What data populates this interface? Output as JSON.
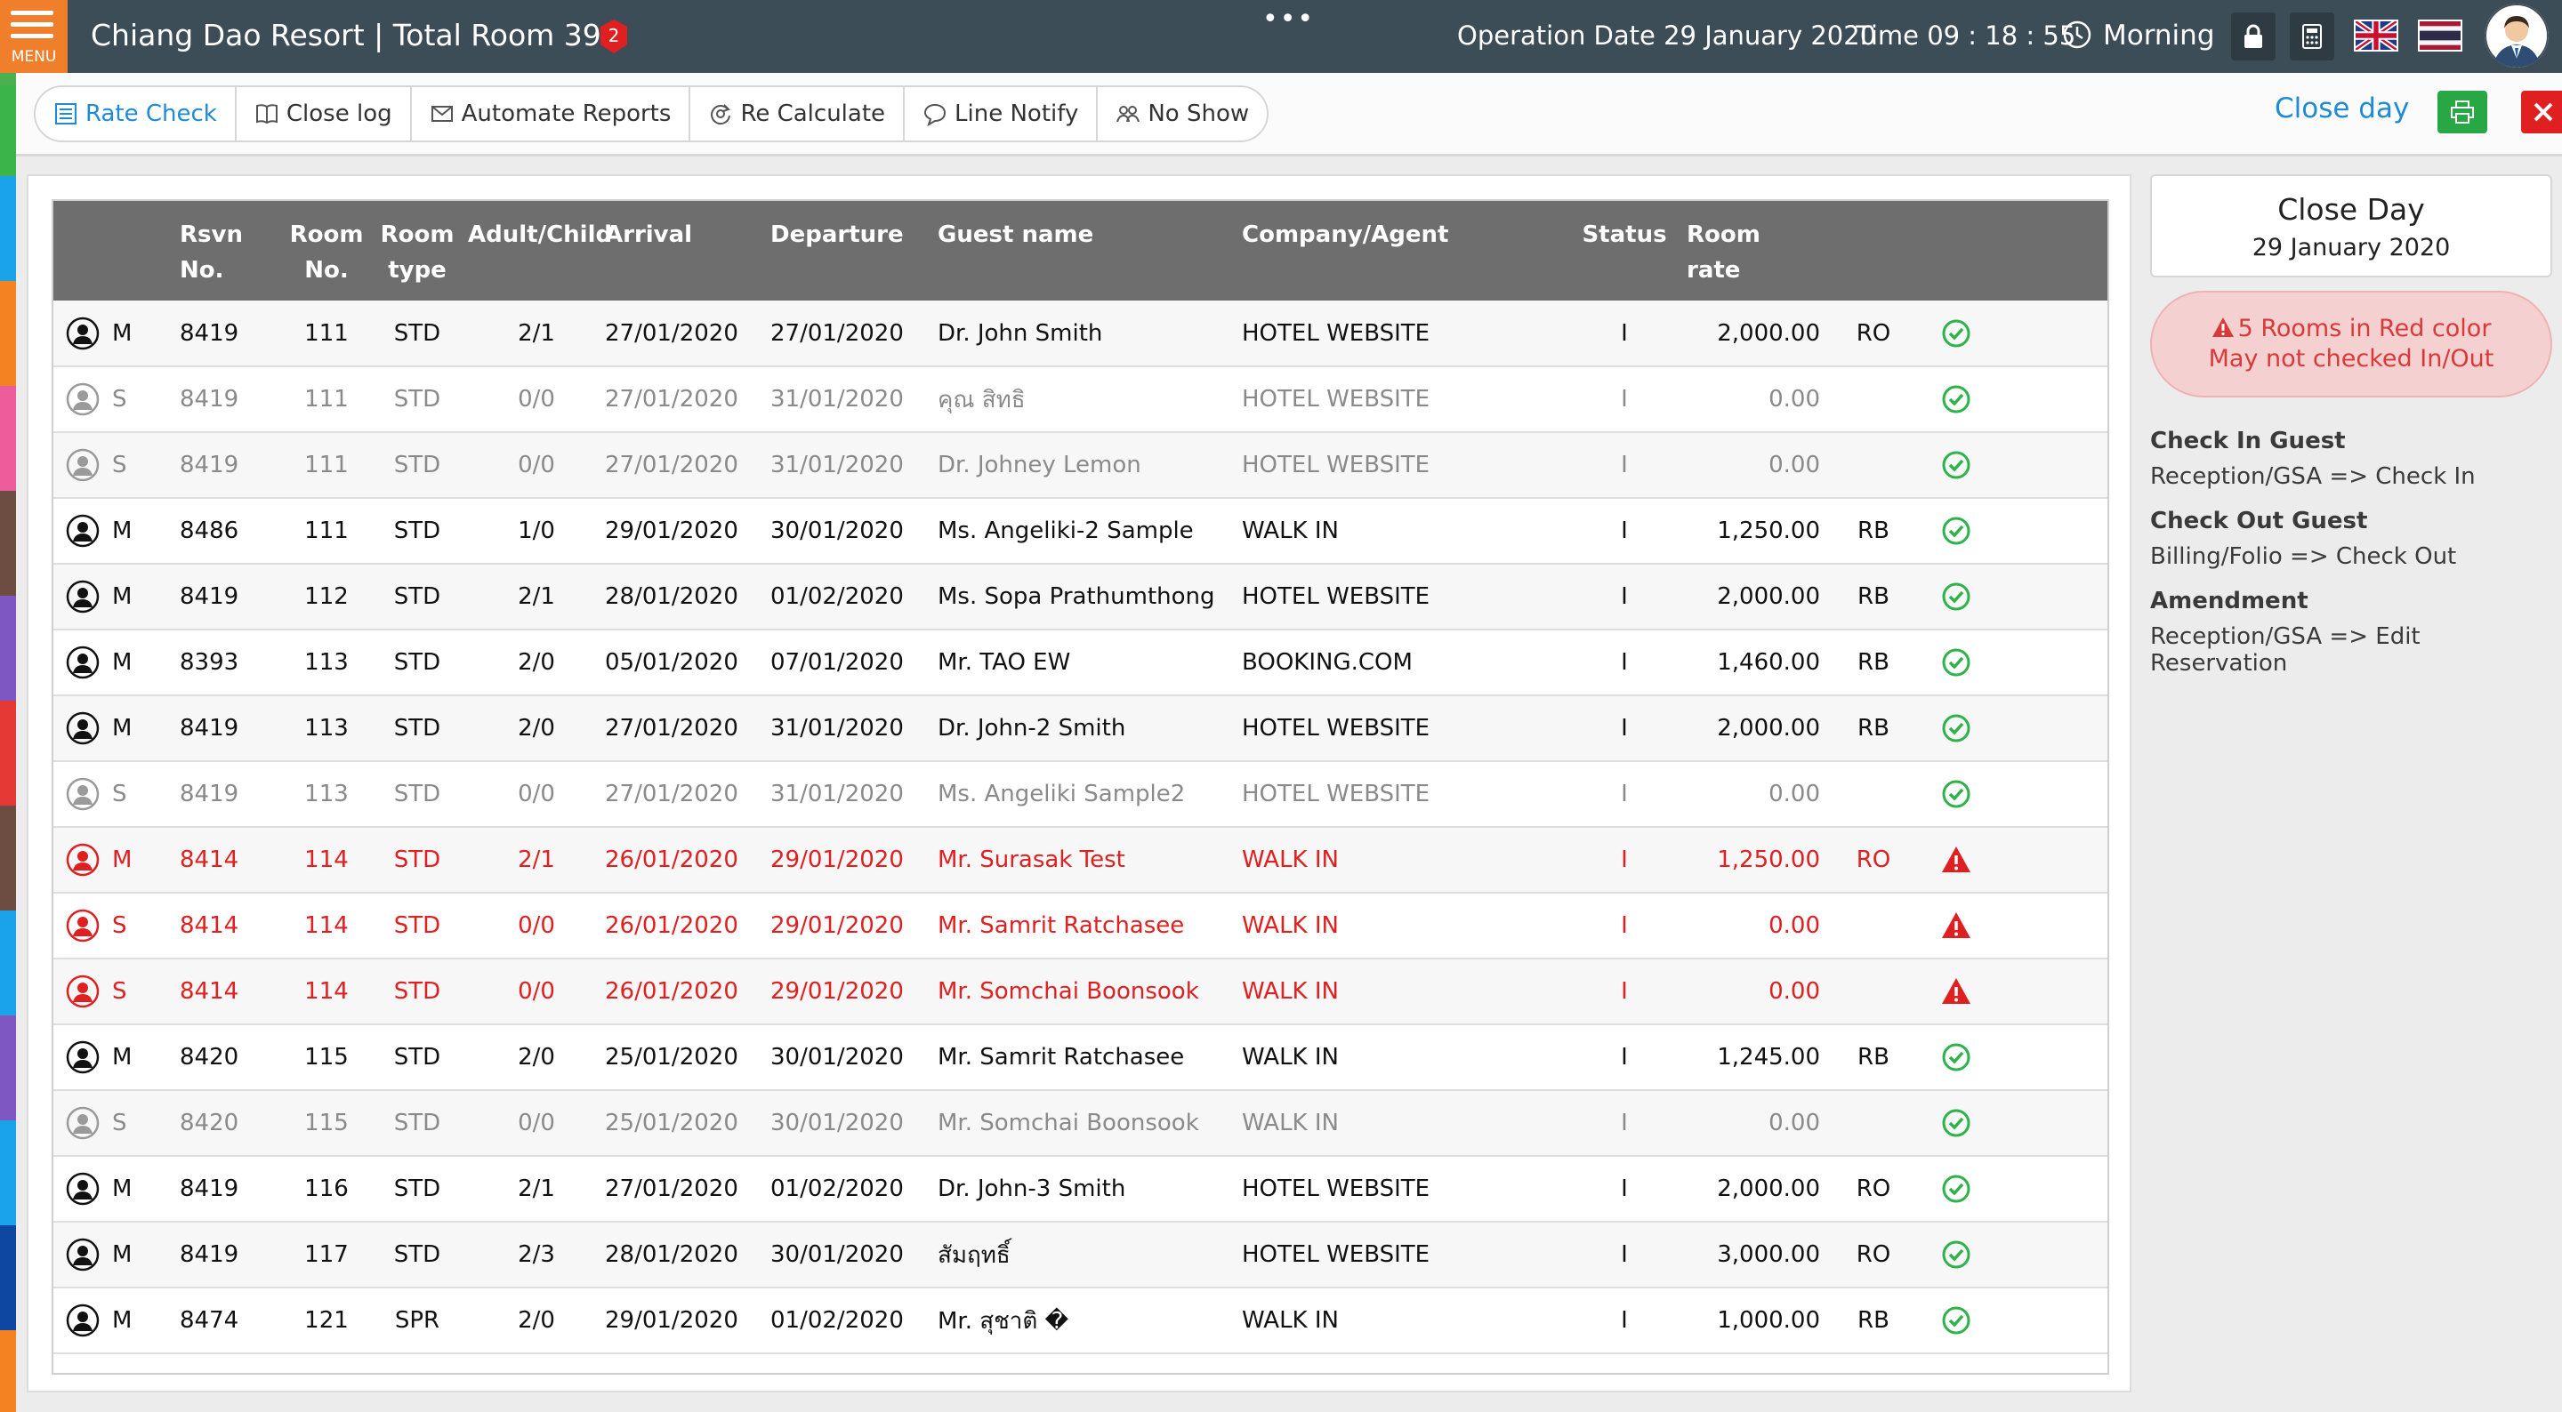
{
  "header": {
    "menu_label": "MENU",
    "title": "Chiang Dao Resort | Total Room 39",
    "notification_count": "2",
    "more_dots": "•••",
    "operation_date": "Operation Date 29 January 2020",
    "time": "Time 09 : 18 : 55",
    "shift": "Morning"
  },
  "toolbar": {
    "items": [
      {
        "label": "Rate Check",
        "icon": "list-icon"
      },
      {
        "label": "Close log",
        "icon": "book-icon"
      },
      {
        "label": "Automate Reports",
        "icon": "envelope-icon"
      },
      {
        "label": "Re Calculate",
        "icon": "refresh-icon"
      },
      {
        "label": "Line Notify",
        "icon": "chat-icon"
      },
      {
        "label": "No Show",
        "icon": "people-icon"
      }
    ],
    "close_day_link": "Close day"
  },
  "table": {
    "headers": {
      "rsvn1": "Rsvn",
      "rsvn2": "No.",
      "room1": "Room",
      "room2": "No.",
      "type1": "Room",
      "type2": "type",
      "pax": "Adult/Child",
      "arrival": "Arrival",
      "departure": "Departure",
      "guest": "Guest name",
      "company": "Company/Agent",
      "status": "Status",
      "rate": "Room rate"
    },
    "rows": [
      {
        "kind": "M",
        "rsvn": "8419",
        "room": "111",
        "type": "STD",
        "pax": "2/1",
        "arrival": "27/01/2020",
        "departure": "27/01/2020",
        "guest": "Dr. John Smith",
        "company": "HOTEL WEBSITE",
        "status": "I",
        "rate": "2,000.00",
        "plan": "RO",
        "state": "normal"
      },
      {
        "kind": "S",
        "rsvn": "8419",
        "room": "111",
        "type": "STD",
        "pax": "0/0",
        "arrival": "27/01/2020",
        "departure": "31/01/2020",
        "guest": "คุณ สิทธิ",
        "company": "HOTEL WEBSITE",
        "status": "I",
        "rate": "0.00",
        "plan": "",
        "state": "sharer"
      },
      {
        "kind": "S",
        "rsvn": "8419",
        "room": "111",
        "type": "STD",
        "pax": "0/0",
        "arrival": "27/01/2020",
        "departure": "31/01/2020",
        "guest": "Dr. Johney Lemon",
        "company": "HOTEL WEBSITE",
        "status": "I",
        "rate": "0.00",
        "plan": "",
        "state": "sharer"
      },
      {
        "kind": "M",
        "rsvn": "8486",
        "room": "111",
        "type": "STD",
        "pax": "1/0",
        "arrival": "29/01/2020",
        "departure": "30/01/2020",
        "guest": "Ms. Angeliki-2 Sample",
        "company": "WALK IN",
        "status": "I",
        "rate": "1,250.00",
        "plan": "RB",
        "state": "normal"
      },
      {
        "kind": "M",
        "rsvn": "8419",
        "room": "112",
        "type": "STD",
        "pax": "2/1",
        "arrival": "28/01/2020",
        "departure": "01/02/2020",
        "guest": "Ms. Sopa Prathumthong",
        "company": "HOTEL WEBSITE",
        "status": "I",
        "rate": "2,000.00",
        "plan": "RB",
        "state": "normal"
      },
      {
        "kind": "M",
        "rsvn": "8393",
        "room": "113",
        "type": "STD",
        "pax": "2/0",
        "arrival": "05/01/2020",
        "departure": "07/01/2020",
        "guest": "Mr. TAO EW",
        "company": "BOOKING.COM",
        "status": "I",
        "rate": "1,460.00",
        "plan": "RB",
        "state": "normal"
      },
      {
        "kind": "M",
        "rsvn": "8419",
        "room": "113",
        "type": "STD",
        "pax": "2/0",
        "arrival": "27/01/2020",
        "departure": "31/01/2020",
        "guest": "Dr. John-2 Smith",
        "company": "HOTEL WEBSITE",
        "status": "I",
        "rate": "2,000.00",
        "plan": "RB",
        "state": "normal"
      },
      {
        "kind": "S",
        "rsvn": "8419",
        "room": "113",
        "type": "STD",
        "pax": "0/0",
        "arrival": "27/01/2020",
        "departure": "31/01/2020",
        "guest": "Ms. Angeliki Sample2",
        "company": "HOTEL WEBSITE",
        "status": "I",
        "rate": "0.00",
        "plan": "",
        "state": "sharer"
      },
      {
        "kind": "M",
        "rsvn": "8414",
        "room": "114",
        "type": "STD",
        "pax": "2/1",
        "arrival": "26/01/2020",
        "departure": "29/01/2020",
        "guest": "Mr. Surasak Test",
        "company": "WALK IN",
        "status": "I",
        "rate": "1,250.00",
        "plan": "RO",
        "state": "alert"
      },
      {
        "kind": "S",
        "rsvn": "8414",
        "room": "114",
        "type": "STD",
        "pax": "0/0",
        "arrival": "26/01/2020",
        "departure": "29/01/2020",
        "guest": "Mr. Samrit Ratchasee",
        "company": "WALK IN",
        "status": "I",
        "rate": "0.00",
        "plan": "",
        "state": "alert"
      },
      {
        "kind": "S",
        "rsvn": "8414",
        "room": "114",
        "type": "STD",
        "pax": "0/0",
        "arrival": "26/01/2020",
        "departure": "29/01/2020",
        "guest": "Mr. Somchai Boonsook",
        "company": "WALK IN",
        "status": "I",
        "rate": "0.00",
        "plan": "",
        "state": "alert"
      },
      {
        "kind": "M",
        "rsvn": "8420",
        "room": "115",
        "type": "STD",
        "pax": "2/0",
        "arrival": "25/01/2020",
        "departure": "30/01/2020",
        "guest": "Mr. Samrit Ratchasee",
        "company": "WALK IN",
        "status": "I",
        "rate": "1,245.00",
        "plan": "RB",
        "state": "normal"
      },
      {
        "kind": "S",
        "rsvn": "8420",
        "room": "115",
        "type": "STD",
        "pax": "0/0",
        "arrival": "25/01/2020",
        "departure": "30/01/2020",
        "guest": "Mr. Somchai Boonsook",
        "company": "WALK IN",
        "status": "I",
        "rate": "0.00",
        "plan": "",
        "state": "sharer"
      },
      {
        "kind": "M",
        "rsvn": "8419",
        "room": "116",
        "type": "STD",
        "pax": "2/1",
        "arrival": "27/01/2020",
        "departure": "01/02/2020",
        "guest": "Dr. John-3 Smith",
        "company": "HOTEL WEBSITE",
        "status": "I",
        "rate": "2,000.00",
        "plan": "RO",
        "state": "normal"
      },
      {
        "kind": "M",
        "rsvn": "8419",
        "room": "117",
        "type": "STD",
        "pax": "2/3",
        "arrival": "28/01/2020",
        "departure": "30/01/2020",
        "guest": "สัมฤทธิ์",
        "company": "HOTEL WEBSITE",
        "status": "I",
        "rate": "3,000.00",
        "plan": "RO",
        "state": "normal"
      },
      {
        "kind": "M",
        "rsvn": "8474",
        "room": "121",
        "type": "SPR",
        "pax": "2/0",
        "arrival": "29/01/2020",
        "departure": "01/02/2020",
        "guest": "Mr. สุชาติ �",
        "company": "WALK IN",
        "status": "I",
        "rate": "1,000.00",
        "plan": "RB",
        "state": "normal"
      }
    ]
  },
  "side": {
    "card_title": "Close Day",
    "card_date": "29 January 2020",
    "alert_line1": "5 Rooms in Red color",
    "alert_line2": "May not checked In/Out",
    "help": [
      {
        "title": "Check In Guest",
        "text": "Reception/GSA => Check In"
      },
      {
        "title": "Check Out Guest",
        "text": "Billing/Folio => Check Out"
      },
      {
        "title": "Amendment",
        "text": "Reception/GSA => Edit Reservation"
      }
    ]
  },
  "colors": {
    "header_bg": "#3d4d57",
    "menu_orange": "#f07f2c",
    "accent_blue": "#1f8ad6",
    "alert_red": "#e02020",
    "ok_green": "#2db34a",
    "table_header": "#6e6e6e"
  }
}
